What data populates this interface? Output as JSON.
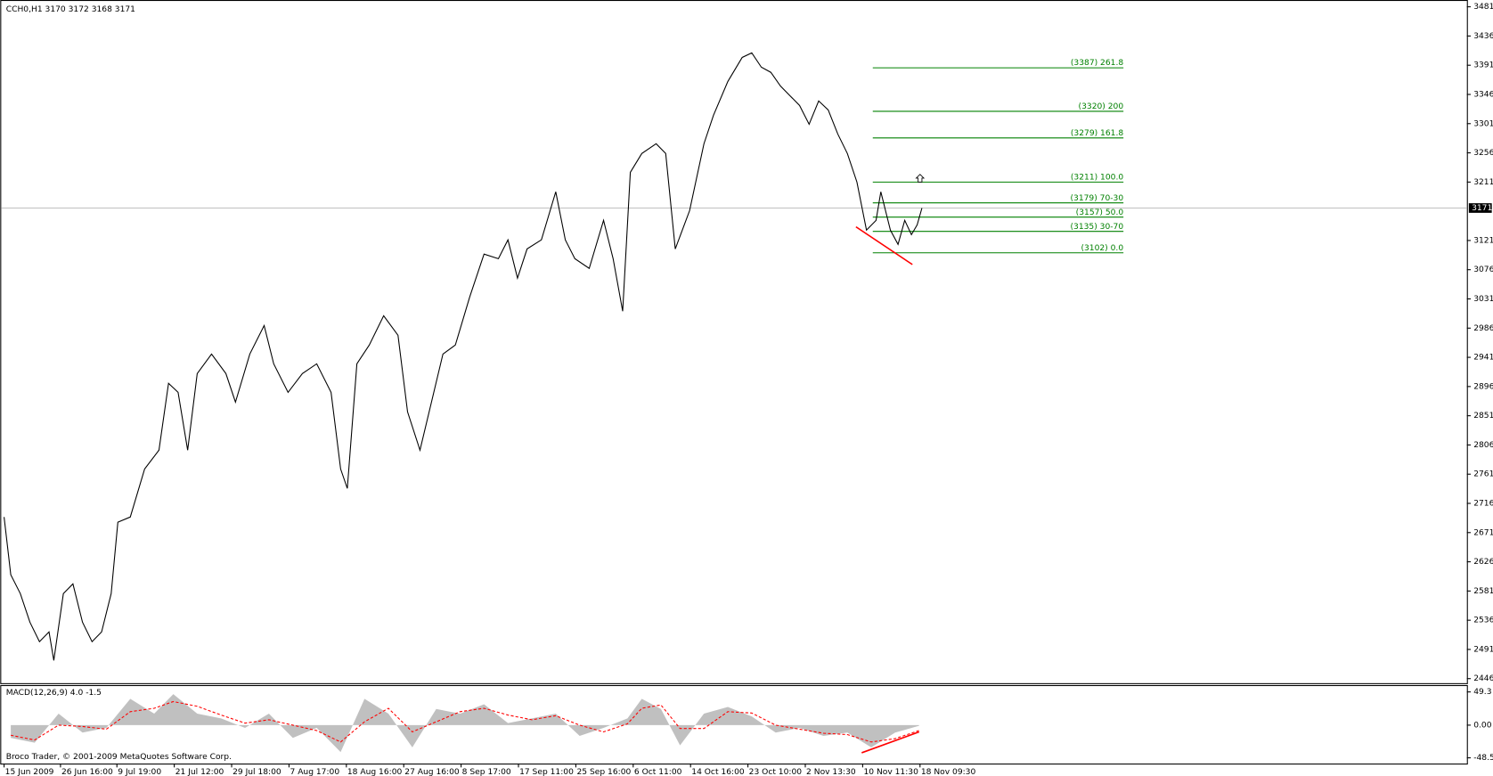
{
  "chart_data": [
    {
      "type": "line",
      "title": "CCH0,H1  3170 3172 3168 3171",
      "x": [
        3,
        10,
        20,
        30,
        40,
        50,
        55,
        65,
        75,
        85,
        95,
        105,
        115,
        122,
        135,
        150,
        165,
        175,
        185,
        195,
        205,
        220,
        235,
        245,
        260,
        275,
        285,
        300,
        315,
        330,
        345,
        355,
        362,
        372,
        385,
        400,
        415,
        425,
        438,
        450,
        462,
        475,
        490,
        505,
        520,
        530,
        540,
        550,
        565,
        580,
        590,
        600,
        615,
        630,
        640,
        650,
        658,
        670,
        685,
        695,
        705,
        720,
        735,
        745,
        760,
        775,
        785,
        795,
        805,
        815,
        825,
        835,
        845,
        855,
        865,
        875,
        885,
        895,
        905,
        915,
        920,
        930,
        938,
        945,
        952,
        958,
        963
      ],
      "values": [
        2695,
        2606,
        2577,
        2533,
        2503,
        2518,
        2474,
        2577,
        2592,
        2533,
        2503,
        2518,
        2577,
        2687,
        2695,
        2769,
        2798,
        2901,
        2887,
        2798,
        2916,
        2946,
        2916,
        2872,
        2946,
        2990,
        2931,
        2887,
        2916,
        2931,
        2887,
        2769,
        2739,
        2931,
        2960,
        3005,
        2975,
        2857,
        2798,
        2872,
        2946,
        2960,
        3034,
        3100,
        3093,
        3122,
        3063,
        3108,
        3122,
        3196,
        3122,
        3093,
        3078,
        3152,
        3093,
        3012,
        3226,
        3255,
        3270,
        3255,
        3108,
        3167,
        3270,
        3314,
        3366,
        3403,
        3410,
        3388,
        3380,
        3359,
        3344,
        3329,
        3300,
        3336,
        3322,
        3285,
        3255,
        3211,
        3137,
        3152,
        3196,
        3137,
        3115,
        3152,
        3130,
        3145,
        3171
      ],
      "color": "#000000",
      "xlim": [
        0,
        1533
      ],
      "xticks": [
        {
          "value": 3,
          "label": "15 Jun 2009"
        },
        {
          "value": 62,
          "label": "26 Jun 16:00"
        },
        {
          "value": 121,
          "label": "9 Jul 19:00"
        },
        {
          "value": 181,
          "label": "21 Jul 12:00"
        },
        {
          "value": 241,
          "label": "29 Jul 18:00"
        },
        {
          "value": 301,
          "label": "7 Aug 17:00"
        },
        {
          "value": 361,
          "label": "18 Aug 16:00"
        },
        {
          "value": 421,
          "label": "27 Aug 16:00"
        },
        {
          "value": 481,
          "label": "8 Sep 17:00"
        },
        {
          "value": 541,
          "label": "17 Sep 11:00"
        },
        {
          "value": 601,
          "label": "25 Sep 16:00"
        },
        {
          "value": 661,
          "label": "6 Oct 11:00"
        },
        {
          "value": 721,
          "label": "14 Oct 16:00"
        },
        {
          "value": 781,
          "label": "23 Oct 10:00"
        },
        {
          "value": 841,
          "label": "2 Nov 13:30"
        },
        {
          "value": 901,
          "label": "10 Nov 11:30"
        },
        {
          "value": 961,
          "label": "18 Nov 09:30"
        }
      ],
      "ylim": [
        2439,
        3490
      ],
      "yticks": [
        3481,
        3436,
        3391,
        3346,
        3301,
        3256,
        3211,
        3121,
        3076,
        3031,
        2986,
        2941,
        2896,
        2851,
        2806,
        2761,
        2716,
        2671,
        2626,
        2581,
        2536,
        2491,
        2446
      ],
      "last_price": 3171,
      "fib_color": "#008000",
      "fib_levels": [
        {
          "value": 3387,
          "label": "(3387)  261.8"
        },
        {
          "value": 3320,
          "label": "(3320)  200"
        },
        {
          "value": 3279,
          "label": "(3279)  161.8"
        },
        {
          "value": 3211,
          "label": "(3211)  100.0"
        },
        {
          "value": 3179,
          "label": "(3179)  70-30"
        },
        {
          "value": 3157,
          "label": "(3157)  50.0"
        },
        {
          "value": 3135,
          "label": "(3135)  30-70"
        },
        {
          "value": 3102,
          "label": "(3102)  0.0"
        }
      ],
      "trendline": {
        "x": [
          894,
          953
        ],
        "values": [
          3142,
          3084
        ],
        "color": "#ff0000"
      },
      "arrow": {
        "x": 961,
        "value": 3217
      }
    },
    {
      "type": "macd",
      "title": "MACD(12,26,9) 4.0 -1.5",
      "x": [
        10,
        35,
        60,
        85,
        110,
        135,
        160,
        180,
        205,
        230,
        255,
        280,
        305,
        330,
        355,
        380,
        405,
        430,
        455,
        480,
        505,
        530,
        555,
        580,
        605,
        630,
        655,
        670,
        690,
        710,
        735,
        760,
        785,
        810,
        835,
        860,
        885,
        910,
        935,
        960
      ],
      "histogram": {
        "color": "#c0c0c0",
        "values": [
          -19,
          -26,
          17,
          -11,
          -4,
          39,
          17,
          46,
          17,
          10,
          -4,
          17,
          -19,
          -4,
          -40,
          39,
          17,
          -33,
          24,
          17,
          31,
          3,
          10,
          17,
          -16,
          -4,
          10,
          39,
          24,
          -30,
          17,
          27,
          13,
          -11,
          -4,
          -16,
          -11,
          -33,
          -11,
          -1
        ]
      },
      "signal": {
        "color": "#ff0000",
        "values": [
          -15,
          -22,
          0,
          -2,
          -6,
          20,
          25,
          35,
          28,
          15,
          3,
          8,
          0,
          -8,
          -25,
          5,
          25,
          -10,
          5,
          20,
          25,
          15,
          8,
          14,
          0,
          -10,
          2,
          25,
          30,
          -5,
          -5,
          20,
          18,
          0,
          -6,
          -12,
          -14,
          -25,
          -20,
          -8
        ]
      },
      "ylim": [
        -57,
        58
      ],
      "yticks": [
        49.3,
        {
          "value": 0,
          "label": "0.00"
        },
        -48.5
      ],
      "trendline": {
        "x": [
          900,
          960
        ],
        "values": [
          -41,
          -10
        ],
        "color": "#ff0000"
      },
      "footer": "Broco Trader, © 2001-2009 MetaQuotes Software Corp."
    }
  ]
}
